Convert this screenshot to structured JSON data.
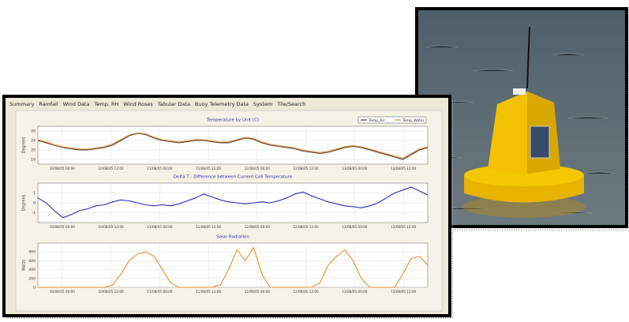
{
  "tabs": [
    "Summary",
    "Rainfall",
    "Wind Data",
    "Temp, RH",
    "Wind Roses",
    "Tabular Data",
    "Buoy Telemetry Data",
    "System",
    "Tile/Search"
  ],
  "chart_data": [
    {
      "type": "line",
      "title": "Temperature by Unit (C)",
      "ylabel": "Degrees",
      "ylim": [
        14,
        30
      ],
      "yticks": [
        16,
        20,
        24,
        28
      ],
      "x_labels": [
        "10/08/05 00:00",
        "10/08/05 12:00",
        "11/08/05 00:00",
        "11/08/05 12:00",
        "12/08/05 00:00",
        "12/08/05 12:00",
        "13/08/05 00:00",
        "13/08/05 12:00"
      ],
      "series": [
        {
          "name": "Temp_Air",
          "color": "#4a3a2a",
          "values": [
            24,
            23,
            22,
            21,
            20.5,
            20,
            20,
            20.5,
            21,
            22,
            24,
            26,
            27,
            26.5,
            25,
            24,
            23.5,
            23,
            23.5,
            24,
            24,
            23.5,
            23,
            23,
            24,
            25,
            24.5,
            23,
            22,
            21.5,
            21,
            20.5,
            19.5,
            19,
            18.5,
            19,
            20,
            21,
            21.5,
            21,
            20,
            19,
            18,
            17,
            16,
            18,
            20,
            21
          ]
        },
        {
          "name": "Temp_Water",
          "color": "#e08a3a",
          "values": [
            24.3,
            23.4,
            22.2,
            21.3,
            20.8,
            20.4,
            20.3,
            20.8,
            21.4,
            22.5,
            24.4,
            26.3,
            27.2,
            26.8,
            25.4,
            24.3,
            23.8,
            23.4,
            23.8,
            24.4,
            24.3,
            23.8,
            23.3,
            23.4,
            24.4,
            25.3,
            24.8,
            23.4,
            22.4,
            21.8,
            21.4,
            20.8,
            19.9,
            19.4,
            18.9,
            19.5,
            20.4,
            21.4,
            21.8,
            21.3,
            20.4,
            19.4,
            18.4,
            17.4,
            16.5,
            18.5,
            20.4,
            21.3
          ]
        }
      ],
      "legend": "upper right"
    },
    {
      "type": "line",
      "title": "Delta T - Difference between Current Cell Temperature",
      "ylabel": "Degrees",
      "ylim": [
        -2,
        2
      ],
      "yticks": [
        -1,
        0,
        1
      ],
      "x_labels": [
        "10/08/05 00:00",
        "10/08/05 12:00",
        "11/08/05 00:00",
        "11/08/05 12:00",
        "12/08/05 00:00",
        "12/08/05 12:00",
        "13/08/05 00:00",
        "13/08/05 12:00"
      ],
      "series": [
        {
          "name": "Delta T",
          "color": "#2a2ab8",
          "values": [
            0.5,
            0,
            -0.8,
            -1.5,
            -1.2,
            -0.8,
            -0.6,
            -0.3,
            -0.2,
            0.1,
            0.3,
            0.2,
            0,
            -0.2,
            -0.3,
            -0.2,
            -0.3,
            -0.1,
            0.2,
            0.5,
            0.9,
            0.6,
            0.3,
            0.1,
            0,
            -0.1,
            0,
            0.1,
            0,
            0.2,
            0.5,
            0.9,
            1.1,
            0.7,
            0.4,
            0.1,
            -0.1,
            -0.3,
            -0.4,
            -0.5,
            -0.3,
            0,
            0.5,
            1,
            1.3,
            1.6,
            1.2,
            0.8
          ]
        }
      ]
    },
    {
      "type": "line",
      "title": "Solar Radiation",
      "ylabel": "Watts",
      "ylim": [
        0,
        1000
      ],
      "yticks": [
        0,
        200,
        400,
        600,
        800
      ],
      "x_labels": [
        "10/08/05 00:00",
        "10/08/05 12:00",
        "11/08/05 00:00",
        "11/08/05 12:00",
        "12/08/05 00:00",
        "12/08/05 12:00",
        "13/08/05 00:00",
        "13/08/05 12:00"
      ],
      "series": [
        {
          "name": "Solar",
          "color": "#e8902a",
          "values": [
            0,
            0,
            0,
            0,
            0,
            0,
            0,
            0,
            0,
            50,
            300,
            600,
            750,
            800,
            700,
            400,
            100,
            0,
            0,
            0,
            0,
            0,
            50,
            400,
            850,
            600,
            900,
            300,
            0,
            0,
            0,
            0,
            0,
            0,
            100,
            500,
            700,
            850,
            600,
            200,
            0,
            0,
            0,
            0,
            300,
            650,
            700,
            500
          ]
        }
      ]
    }
  ]
}
